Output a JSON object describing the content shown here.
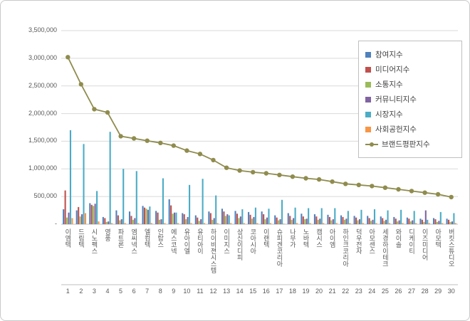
{
  "figure": {
    "background": "#FFFFFF",
    "border_color": "#C9C9C9"
  },
  "chart_data": {
    "type": "bar",
    "subtype": "grouped-bars-with-line-overlay",
    "title": "",
    "grid": true,
    "legend_position": "inside-top-right",
    "ylim": [
      0,
      3500000
    ],
    "ytick_step": 500000,
    "yticks_labels_top_to_bottom": [
      "3,500,000",
      "3,000,000",
      "2,500,000",
      "2,000,000",
      "1,500,000",
      "1,000,000",
      "500,000",
      "-"
    ],
    "categories": [
      "이엠텍",
      "드림텍",
      "시노펙스",
      "영풍",
      "파트론",
      "엠씨넥스",
      "엘컴텍",
      "인탑스",
      "에스코넥",
      "유아이엘",
      "유티아이",
      "하이비젼시스템",
      "이미지스",
      "상신이디피",
      "코아시아",
      "이랜텍",
      "슈피겐코리아",
      "나무가",
      "노바텍",
      "캠시스",
      "아이엠",
      "하인크코리아",
      "덕우전자",
      "아모센스",
      "세경하이테크",
      "와이솔",
      "디케이티",
      "이즈미디어",
      "아모텍",
      "버킷스튜디오"
    ],
    "rank_labels": [
      "1",
      "2",
      "3",
      "4",
      "5",
      "6",
      "7",
      "8",
      "9",
      "10",
      "11",
      "12",
      "13",
      "14",
      "15",
      "16",
      "17",
      "18",
      "19",
      "20",
      "21",
      "22",
      "23",
      "24",
      "25",
      "26",
      "27",
      "28",
      "29",
      "30"
    ],
    "series": [
      {
        "name": "참여지수",
        "color": "#4F81BD",
        "values": [
          270000,
          250000,
          380000,
          130000,
          250000,
          230000,
          330000,
          240000,
          450000,
          200000,
          160000,
          230000,
          280000,
          240000,
          220000,
          230000,
          160000,
          200000,
          190000,
          180000,
          170000,
          160000,
          150000,
          150000,
          140000,
          130000,
          120000,
          100000,
          110000,
          100000
        ]
      },
      {
        "name": "미디어지수",
        "color": "#C0504D",
        "values": [
          610000,
          310000,
          350000,
          110000,
          160000,
          150000,
          300000,
          210000,
          340000,
          180000,
          120000,
          200000,
          230000,
          190000,
          170000,
          180000,
          120000,
          150000,
          140000,
          140000,
          130000,
          130000,
          120000,
          110000,
          110000,
          100000,
          100000,
          80000,
          90000,
          80000
        ]
      },
      {
        "name": "소통지수",
        "color": "#9BBB59",
        "values": [
          120000,
          140000,
          330000,
          40000,
          70000,
          80000,
          280000,
          80000,
          190000,
          90000,
          60000,
          80000,
          150000,
          110000,
          100000,
          90000,
          70000,
          80000,
          90000,
          80000,
          70000,
          80000,
          70000,
          60000,
          60000,
          50000,
          50000,
          40000,
          40000,
          40000
        ]
      },
      {
        "name": "커뮤니티지수",
        "color": "#8064A2",
        "values": [
          210000,
          180000,
          370000,
          50000,
          90000,
          110000,
          260000,
          90000,
          210000,
          130000,
          90000,
          110000,
          180000,
          140000,
          130000,
          120000,
          90000,
          110000,
          100000,
          100000,
          90000,
          100000,
          90000,
          80000,
          80000,
          70000,
          70000,
          250000,
          60000,
          50000
        ]
      },
      {
        "name": "시장지수",
        "color": "#4BACC6",
        "values": [
          1700000,
          1450000,
          600000,
          1670000,
          1000000,
          960000,
          320000,
          830000,
          210000,
          710000,
          820000,
          520000,
          160000,
          270000,
          300000,
          280000,
          440000,
          300000,
          290000,
          290000,
          290000,
          240000,
          260000,
          270000,
          250000,
          260000,
          240000,
          80000,
          220000,
          200000
        ]
      },
      {
        "name": "사회공헌지수",
        "color": "#F79646",
        "values": [
          110000,
          200000,
          50000,
          20000,
          20000,
          20000,
          20000,
          20000,
          20000,
          20000,
          20000,
          20000,
          20000,
          20000,
          20000,
          20000,
          10000,
          20000,
          20000,
          20000,
          20000,
          20000,
          20000,
          20000,
          20000,
          20000,
          20000,
          20000,
          20000,
          20000
        ]
      }
    ],
    "line_series": {
      "name": "브랜드평판지수",
      "color": "#8F8C4E",
      "values": [
        3020000,
        2530000,
        2080000,
        2020000,
        1590000,
        1550000,
        1510000,
        1470000,
        1420000,
        1330000,
        1270000,
        1160000,
        1020000,
        970000,
        940000,
        920000,
        890000,
        860000,
        830000,
        810000,
        770000,
        730000,
        710000,
        690000,
        660000,
        630000,
        600000,
        570000,
        540000,
        490000
      ]
    }
  }
}
